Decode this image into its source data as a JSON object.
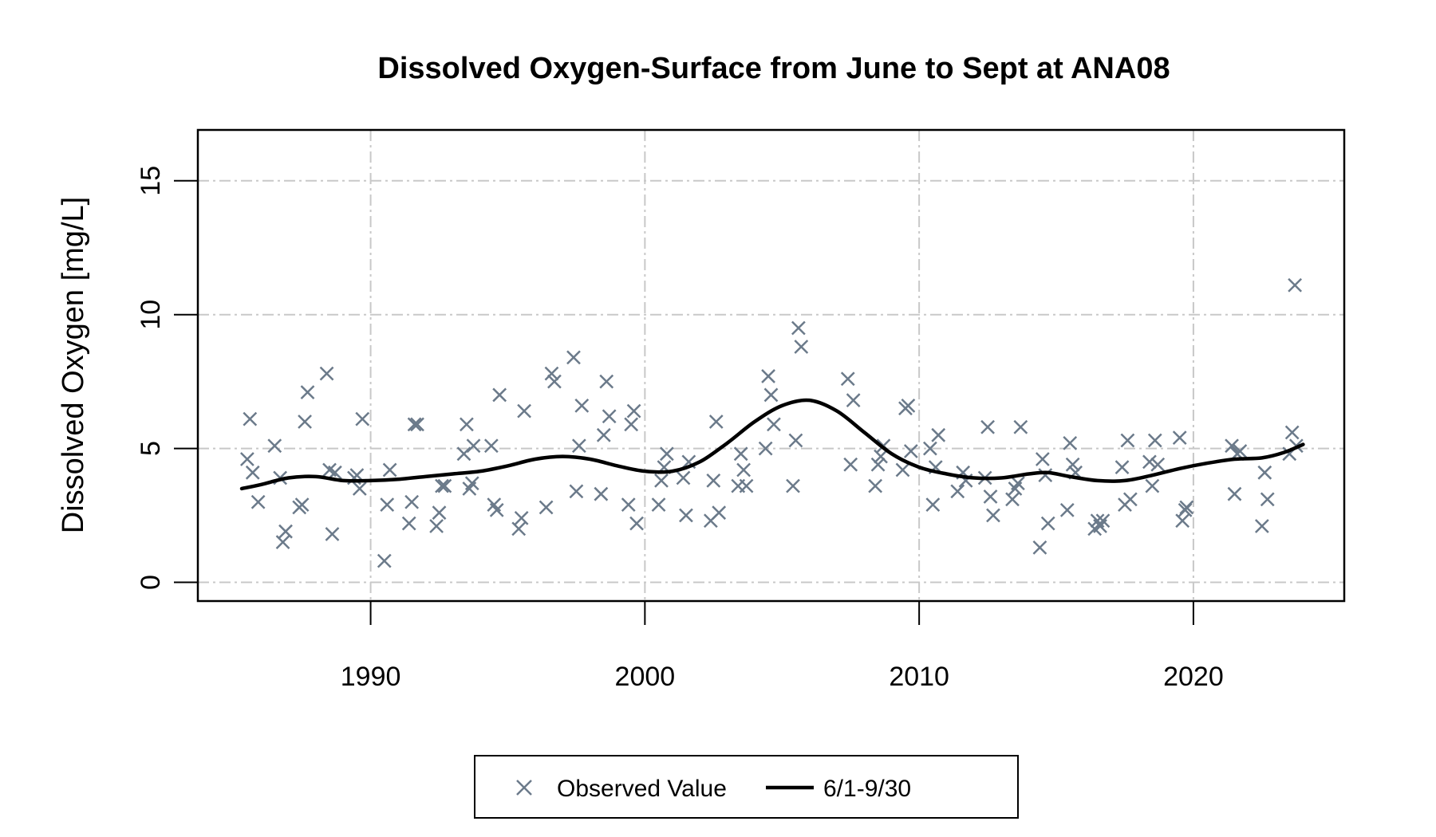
{
  "chart_data": {
    "type": "scatter",
    "title": "Dissolved Oxygen-Surface from June to Sept at ANA08",
    "xlabel": "",
    "ylabel": "Dissolved Oxygen [mg/L]",
    "xlim": [
      1983.7,
      2025.5
    ],
    "ylim": [
      -0.7,
      16.9
    ],
    "xticks": [
      1990,
      2000,
      2010,
      2020
    ],
    "yticks": [
      0,
      5,
      10,
      15
    ],
    "grid": true,
    "legend_position": "bottom",
    "legend": [
      {
        "label": "Observed Value",
        "marker": "x",
        "color": "#6b7a8a"
      },
      {
        "label": "6/1-9/30",
        "marker": "line",
        "color": "#000000"
      }
    ],
    "series": [
      {
        "name": "Observed Value",
        "marker": "x",
        "color": "#6b7a8a",
        "points": [
          [
            1985.5,
            4.6
          ],
          [
            1985.6,
            6.1
          ],
          [
            1985.7,
            4.1
          ],
          [
            1985.9,
            3.0
          ],
          [
            1986.5,
            5.1
          ],
          [
            1986.7,
            3.9
          ],
          [
            1986.8,
            1.5
          ],
          [
            1986.9,
            1.9
          ],
          [
            1987.4,
            2.8
          ],
          [
            1987.5,
            2.9
          ],
          [
            1987.6,
            6.0
          ],
          [
            1987.7,
            7.1
          ],
          [
            1988.4,
            7.8
          ],
          [
            1988.5,
            4.2
          ],
          [
            1988.6,
            1.8
          ],
          [
            1988.7,
            4.1
          ],
          [
            1989.4,
            3.9
          ],
          [
            1989.5,
            4.0
          ],
          [
            1989.6,
            3.5
          ],
          [
            1989.7,
            6.1
          ],
          [
            1990.5,
            0.8
          ],
          [
            1990.6,
            2.9
          ],
          [
            1990.7,
            4.2
          ],
          [
            1991.4,
            2.2
          ],
          [
            1991.5,
            3.0
          ],
          [
            1991.6,
            5.9
          ],
          [
            1991.7,
            5.9
          ],
          [
            1992.4,
            2.1
          ],
          [
            1992.5,
            2.6
          ],
          [
            1992.6,
            3.6
          ],
          [
            1992.7,
            3.6
          ],
          [
            1993.4,
            4.8
          ],
          [
            1993.5,
            5.9
          ],
          [
            1993.6,
            3.5
          ],
          [
            1993.7,
            3.7
          ],
          [
            1993.75,
            5.1
          ],
          [
            1994.4,
            5.1
          ],
          [
            1994.5,
            2.9
          ],
          [
            1994.6,
            2.7
          ],
          [
            1994.7,
            7.0
          ],
          [
            1995.4,
            2.0
          ],
          [
            1995.5,
            2.4
          ],
          [
            1995.6,
            6.4
          ],
          [
            1996.4,
            2.8
          ],
          [
            1996.6,
            7.8
          ],
          [
            1996.7,
            7.5
          ],
          [
            1997.4,
            8.4
          ],
          [
            1997.5,
            3.4
          ],
          [
            1997.6,
            5.1
          ],
          [
            1997.7,
            6.6
          ],
          [
            1998.4,
            3.3
          ],
          [
            1998.5,
            5.5
          ],
          [
            1998.6,
            7.5
          ],
          [
            1998.7,
            6.2
          ],
          [
            1999.4,
            2.9
          ],
          [
            1999.5,
            5.9
          ],
          [
            1999.6,
            6.4
          ],
          [
            1999.7,
            2.2
          ],
          [
            2000.5,
            2.9
          ],
          [
            2000.6,
            3.8
          ],
          [
            2000.7,
            4.3
          ],
          [
            2000.8,
            4.8
          ],
          [
            2001.4,
            3.9
          ],
          [
            2001.5,
            2.5
          ],
          [
            2001.6,
            4.5
          ],
          [
            2002.4,
            2.3
          ],
          [
            2002.5,
            3.8
          ],
          [
            2002.6,
            6.0
          ],
          [
            2002.7,
            2.6
          ],
          [
            2003.4,
            3.6
          ],
          [
            2003.5,
            4.8
          ],
          [
            2003.6,
            4.2
          ],
          [
            2003.7,
            3.6
          ],
          [
            2004.4,
            5.0
          ],
          [
            2004.5,
            7.7
          ],
          [
            2004.6,
            7.0
          ],
          [
            2004.7,
            5.9
          ],
          [
            2005.4,
            3.6
          ],
          [
            2005.5,
            5.3
          ],
          [
            2005.6,
            9.5
          ],
          [
            2005.7,
            8.8
          ],
          [
            2007.4,
            7.6
          ],
          [
            2007.5,
            4.4
          ],
          [
            2007.6,
            6.8
          ],
          [
            2008.4,
            3.6
          ],
          [
            2008.5,
            4.4
          ],
          [
            2008.6,
            4.7
          ],
          [
            2008.7,
            5.1
          ],
          [
            2009.4,
            4.2
          ],
          [
            2009.5,
            6.5
          ],
          [
            2009.6,
            6.6
          ],
          [
            2009.7,
            4.9
          ],
          [
            2010.4,
            5.0
          ],
          [
            2010.5,
            2.9
          ],
          [
            2010.6,
            4.3
          ],
          [
            2010.7,
            5.5
          ],
          [
            2011.4,
            3.4
          ],
          [
            2011.6,
            4.1
          ],
          [
            2011.7,
            3.8
          ],
          [
            2012.4,
            3.9
          ],
          [
            2012.5,
            5.8
          ],
          [
            2012.6,
            3.2
          ],
          [
            2012.7,
            2.5
          ],
          [
            2013.4,
            3.1
          ],
          [
            2013.5,
            3.5
          ],
          [
            2013.6,
            3.7
          ],
          [
            2013.7,
            5.8
          ],
          [
            2014.4,
            1.3
          ],
          [
            2014.5,
            4.6
          ],
          [
            2014.6,
            4.0
          ],
          [
            2014.7,
            2.2
          ],
          [
            2015.4,
            2.7
          ],
          [
            2015.5,
            5.2
          ],
          [
            2015.6,
            4.4
          ],
          [
            2015.7,
            4.1
          ],
          [
            2016.4,
            2.0
          ],
          [
            2016.5,
            2.3
          ],
          [
            2016.6,
            2.1
          ],
          [
            2016.7,
            2.3
          ],
          [
            2017.4,
            4.3
          ],
          [
            2017.5,
            2.9
          ],
          [
            2017.6,
            5.3
          ],
          [
            2017.7,
            3.1
          ],
          [
            2018.4,
            4.5
          ],
          [
            2018.5,
            3.6
          ],
          [
            2018.6,
            5.3
          ],
          [
            2018.7,
            4.4
          ],
          [
            2019.5,
            5.4
          ],
          [
            2019.6,
            2.3
          ],
          [
            2019.7,
            2.7
          ],
          [
            2019.75,
            2.8
          ],
          [
            2021.4,
            5.1
          ],
          [
            2021.5,
            3.3
          ],
          [
            2021.6,
            4.8
          ],
          [
            2021.7,
            4.9
          ],
          [
            2022.5,
            2.1
          ],
          [
            2022.6,
            4.1
          ],
          [
            2022.7,
            3.1
          ],
          [
            2023.5,
            4.8
          ],
          [
            2023.6,
            5.6
          ],
          [
            2023.7,
            11.1
          ],
          [
            2023.75,
            5.1
          ]
        ]
      },
      {
        "name": "6/1-9/30",
        "marker": "line",
        "color": "#000000",
        "points": [
          [
            1985.3,
            3.5
          ],
          [
            1986.0,
            3.65
          ],
          [
            1987.0,
            3.9
          ],
          [
            1988.0,
            3.95
          ],
          [
            1989.0,
            3.8
          ],
          [
            1990.0,
            3.8
          ],
          [
            1991.0,
            3.85
          ],
          [
            1992.0,
            3.95
          ],
          [
            1993.0,
            4.05
          ],
          [
            1994.0,
            4.15
          ],
          [
            1995.0,
            4.35
          ],
          [
            1996.0,
            4.6
          ],
          [
            1997.0,
            4.7
          ],
          [
            1998.0,
            4.6
          ],
          [
            1999.0,
            4.35
          ],
          [
            2000.0,
            4.15
          ],
          [
            2001.0,
            4.15
          ],
          [
            2002.0,
            4.5
          ],
          [
            2003.0,
            5.2
          ],
          [
            2004.0,
            6.0
          ],
          [
            2005.0,
            6.6
          ],
          [
            2006.0,
            6.8
          ],
          [
            2007.0,
            6.4
          ],
          [
            2008.0,
            5.6
          ],
          [
            2009.0,
            4.8
          ],
          [
            2010.0,
            4.3
          ],
          [
            2011.0,
            4.05
          ],
          [
            2012.0,
            3.9
          ],
          [
            2013.0,
            3.9
          ],
          [
            2014.0,
            4.05
          ],
          [
            2014.7,
            4.1
          ],
          [
            2015.5,
            3.95
          ],
          [
            2016.5,
            3.8
          ],
          [
            2017.5,
            3.8
          ],
          [
            2018.5,
            4.0
          ],
          [
            2019.5,
            4.25
          ],
          [
            2020.5,
            4.45
          ],
          [
            2021.5,
            4.6
          ],
          [
            2022.5,
            4.65
          ],
          [
            2023.3,
            4.85
          ],
          [
            2024.0,
            5.15
          ]
        ]
      }
    ]
  }
}
